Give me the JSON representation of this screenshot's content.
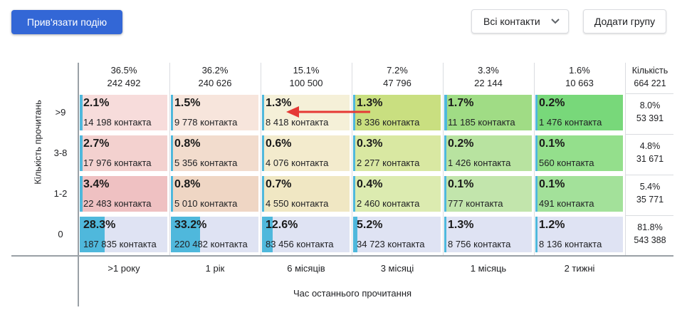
{
  "toolbar": {
    "link_event_label": "Прив'язати подію",
    "contacts_filter_value": "Всі контакти",
    "add_group_label": "Додати групу"
  },
  "chart_data": {
    "type": "heatmap",
    "xlabel": "Час останнього прочитання",
    "ylabel": "Кількість прочитань",
    "columns": [
      {
        "label": ">1 року",
        "pct": "36.5%",
        "total": "242 492"
      },
      {
        "label": "1 рік",
        "pct": "36.2%",
        "total": "240 626"
      },
      {
        "label": "6 місяців",
        "pct": "15.1%",
        "total": "100 500"
      },
      {
        "label": "3 місяці",
        "pct": "7.2%",
        "total": "47 796"
      },
      {
        "label": "1 місяць",
        "pct": "3.3%",
        "total": "22 144"
      },
      {
        "label": "2 тижні",
        "pct": "1.6%",
        "total": "10 663"
      }
    ],
    "total_header": {
      "label": "Кількість",
      "total": "664 221"
    },
    "rows": [
      {
        "label": ">9",
        "pct": "8.0%",
        "total": "53 391",
        "cells": [
          {
            "pct": "2.1%",
            "count": "14 198 контакта",
            "fill": 0.03,
            "color": "#f7dcdb"
          },
          {
            "pct": "1.5%",
            "count": "9 778 контакта",
            "fill": 0.02,
            "color": "#f7e5dc"
          },
          {
            "pct": "1.3%",
            "count": "8 418 контакта",
            "fill": 0.02,
            "color": "#f5f0d8"
          },
          {
            "pct": "1.3%",
            "count": "8 336 контакта",
            "fill": 0.02,
            "color": "#c9df80"
          },
          {
            "pct": "1.7%",
            "count": "11 185 контакта",
            "fill": 0.03,
            "color": "#a0dc85"
          },
          {
            "pct": "0.2%",
            "count": "1 476 контакта",
            "fill": 0.01,
            "color": "#78d87a"
          }
        ]
      },
      {
        "label": "3-8",
        "pct": "4.8%",
        "total": "31 671",
        "cells": [
          {
            "pct": "2.7%",
            "count": "17 976 контакта",
            "fill": 0.03,
            "color": "#f3d1cf"
          },
          {
            "pct": "0.8%",
            "count": "5 356 контакта",
            "fill": 0.01,
            "color": "#f2dccd"
          },
          {
            "pct": "0.6%",
            "count": "4 076 контакта",
            "fill": 0.01,
            "color": "#f3ebcd"
          },
          {
            "pct": "0.3%",
            "count": "2 277 контакта",
            "fill": 0.01,
            "color": "#d9e8a2"
          },
          {
            "pct": "0.2%",
            "count": "1 426 контакта",
            "fill": 0.01,
            "color": "#b8e3a0"
          },
          {
            "pct": "0.1%",
            "count": "560 контакта",
            "fill": 0.01,
            "color": "#94df8c"
          }
        ]
      },
      {
        "label": "1-2",
        "pct": "5.4%",
        "total": "35 771",
        "cells": [
          {
            "pct": "3.4%",
            "count": "22 483 контакта",
            "fill": 0.03,
            "color": "#efc1c2"
          },
          {
            "pct": "0.8%",
            "count": "5 010 контакта",
            "fill": 0.01,
            "color": "#efd6c4"
          },
          {
            "pct": "0.7%",
            "count": "4 550 контакта",
            "fill": 0.01,
            "color": "#f0e7c3"
          },
          {
            "pct": "0.4%",
            "count": "2 460 контакта",
            "fill": 0.01,
            "color": "#dcebb0"
          },
          {
            "pct": "0.1%",
            "count": "777 контакта",
            "fill": 0.01,
            "color": "#c2e5ac"
          },
          {
            "pct": "0.1%",
            "count": "491 контакта",
            "fill": 0.01,
            "color": "#a3e19a"
          }
        ]
      },
      {
        "label": "0",
        "pct": "81.8%",
        "total": "543 388",
        "cells": [
          {
            "pct": "28.3%",
            "count": "187 835 контакта",
            "fill": 0.283,
            "color": "#dfe3f3"
          },
          {
            "pct": "33.2%",
            "count": "220 482 контакта",
            "fill": 0.332,
            "color": "#dfe3f3"
          },
          {
            "pct": "12.6%",
            "count": "83 456 контакта",
            "fill": 0.126,
            "color": "#dfe3f3"
          },
          {
            "pct": "5.2%",
            "count": "34 723 контакта",
            "fill": 0.052,
            "color": "#dfe3f3"
          },
          {
            "pct": "1.3%",
            "count": "8 756 контакта",
            "fill": 0.02,
            "color": "#dfe3f3"
          },
          {
            "pct": "1.2%",
            "count": "8 136 контакта",
            "fill": 0.02,
            "color": "#dfe3f3"
          }
        ]
      }
    ]
  },
  "annotation": {
    "arrow_color": "#e53935"
  }
}
